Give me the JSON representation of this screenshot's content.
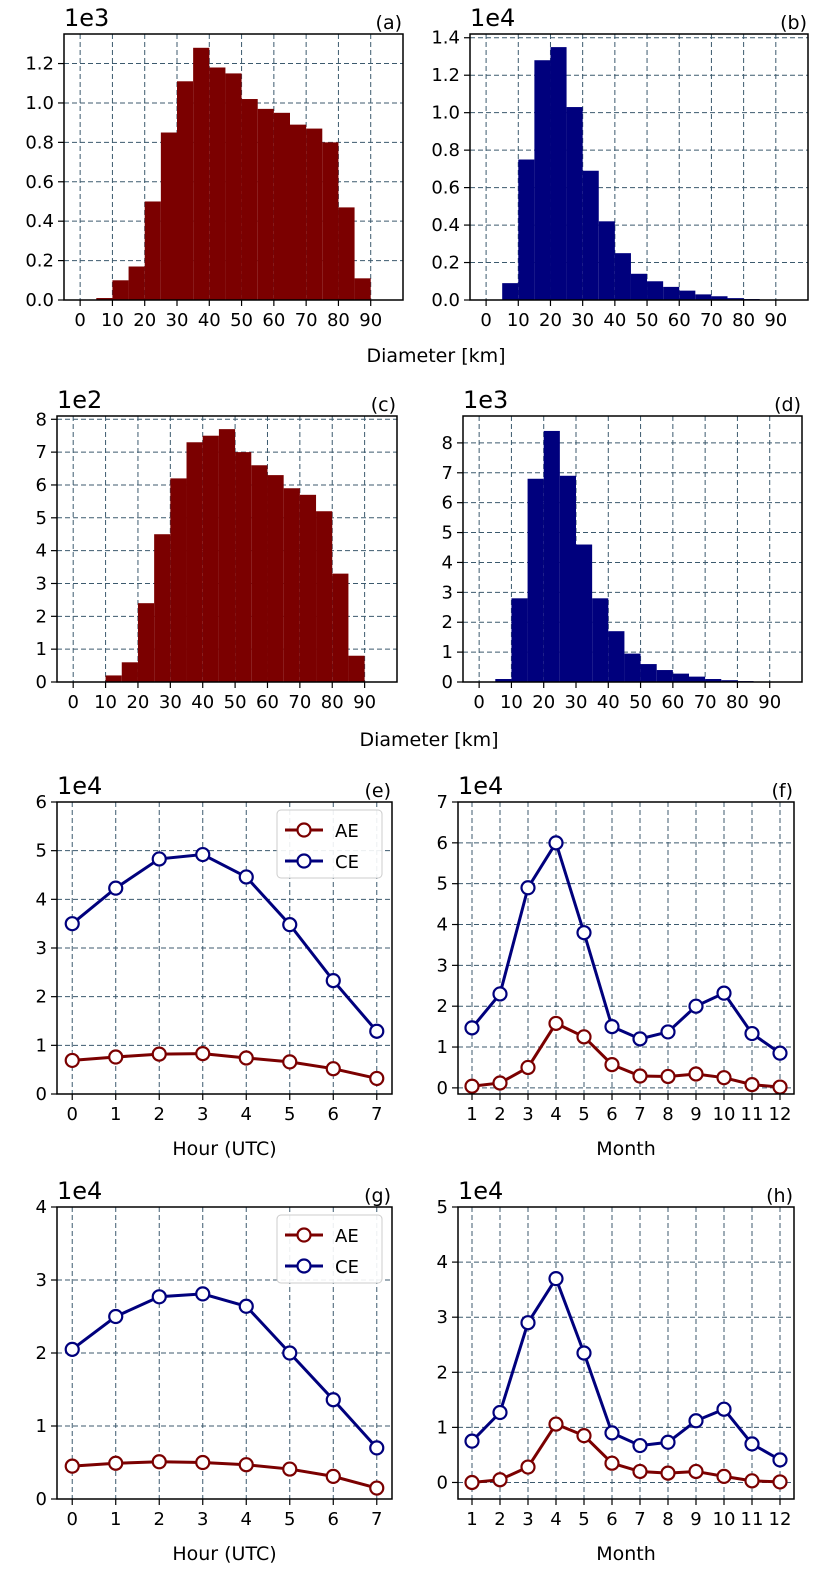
{
  "colors": {
    "ae": "#7b0000",
    "ce": "#00007d",
    "grid": "#3c5a6e"
  },
  "shared_labels": {
    "diameter": "Diameter [km]"
  },
  "chart_data": [
    {
      "panel": "(a)",
      "type": "bar",
      "scale_label": "1e3",
      "bin_width": 5,
      "bin_starts": [
        0,
        5,
        10,
        15,
        20,
        25,
        30,
        35,
        40,
        45,
        50,
        55,
        60,
        65,
        70,
        75,
        80,
        85,
        90,
        95
      ],
      "values": [
        0,
        0.01,
        0.1,
        0.17,
        0.5,
        0.85,
        1.11,
        1.28,
        1.18,
        1.15,
        1.02,
        0.97,
        0.95,
        0.89,
        0.87,
        0.8,
        0.47,
        0.11,
        0,
        0
      ],
      "xticks": [
        0,
        10,
        20,
        30,
        40,
        50,
        60,
        70,
        80,
        90
      ],
      "xlim": [
        -5,
        100
      ],
      "yticks": [
        "0.0",
        "0.2",
        "0.4",
        "0.6",
        "0.8",
        "1.0",
        "1.2"
      ],
      "ytick_values": [
        0,
        0.2,
        0.4,
        0.6,
        0.8,
        1.0,
        1.2
      ],
      "ylim": [
        0,
        1.35
      ],
      "color": "ae",
      "grid": true
    },
    {
      "panel": "(b)",
      "type": "bar",
      "scale_label": "1e4",
      "bin_width": 5,
      "bin_starts": [
        0,
        5,
        10,
        15,
        20,
        25,
        30,
        35,
        40,
        45,
        50,
        55,
        60,
        65,
        70,
        75,
        80,
        85,
        90,
        95
      ],
      "values": [
        0,
        0.09,
        0.75,
        1.28,
        1.35,
        1.03,
        0.69,
        0.42,
        0.25,
        0.14,
        0.1,
        0.07,
        0.05,
        0.03,
        0.02,
        0.01,
        0.005,
        0.002,
        0,
        0
      ],
      "xticks": [
        0,
        10,
        20,
        30,
        40,
        50,
        60,
        70,
        80,
        90
      ],
      "xlim": [
        -5,
        100
      ],
      "yticks": [
        "0.0",
        "0.2",
        "0.4",
        "0.6",
        "0.8",
        "1.0",
        "1.2",
        "1.4"
      ],
      "ytick_values": [
        0,
        0.2,
        0.4,
        0.6,
        0.8,
        1.0,
        1.2,
        1.4
      ],
      "ylim": [
        0,
        1.42
      ],
      "color": "ce",
      "grid": true
    },
    {
      "panel": "(c)",
      "type": "bar",
      "scale_label": "1e2",
      "bin_width": 5,
      "bin_starts": [
        0,
        5,
        10,
        15,
        20,
        25,
        30,
        35,
        40,
        45,
        50,
        55,
        60,
        65,
        70,
        75,
        80,
        85,
        90,
        95
      ],
      "values": [
        0,
        0,
        0.2,
        0.6,
        2.4,
        4.5,
        6.2,
        7.3,
        7.5,
        7.7,
        7.0,
        6.6,
        6.3,
        5.9,
        5.7,
        5.2,
        3.3,
        0.8,
        0,
        0
      ],
      "xticks": [
        0,
        10,
        20,
        30,
        40,
        50,
        60,
        70,
        80,
        90
      ],
      "xlim": [
        -5,
        100
      ],
      "yticks": [
        "0",
        "1",
        "2",
        "3",
        "4",
        "5",
        "6",
        "7",
        "8"
      ],
      "ytick_values": [
        0,
        1,
        2,
        3,
        4,
        5,
        6,
        7,
        8
      ],
      "ylim": [
        0,
        8.1
      ],
      "color": "ae",
      "grid": true
    },
    {
      "panel": "(d)",
      "type": "bar",
      "scale_label": "1e3",
      "bin_width": 5,
      "bin_starts": [
        0,
        5,
        10,
        15,
        20,
        25,
        30,
        35,
        40,
        45,
        50,
        55,
        60,
        65,
        70,
        75,
        80,
        85,
        90,
        95
      ],
      "values": [
        0,
        0.1,
        2.8,
        6.8,
        8.4,
        6.9,
        4.6,
        2.8,
        1.7,
        0.95,
        0.6,
        0.4,
        0.28,
        0.18,
        0.1,
        0.06,
        0.03,
        0.01,
        0,
        0
      ],
      "xticks": [
        0,
        10,
        20,
        30,
        40,
        50,
        60,
        70,
        80,
        90
      ],
      "xlim": [
        -5,
        100
      ],
      "yticks": [
        "0",
        "1",
        "2",
        "3",
        "4",
        "5",
        "6",
        "7",
        "8"
      ],
      "ytick_values": [
        0,
        1,
        2,
        3,
        4,
        5,
        6,
        7,
        8
      ],
      "ylim": [
        0,
        8.9
      ],
      "color": "ce",
      "grid": true
    },
    {
      "panel": "(e)",
      "type": "line",
      "scale_label": "1e4",
      "xlabel": "Hour (UTC)",
      "x": [
        0,
        1,
        2,
        3,
        4,
        5,
        6,
        7
      ],
      "xticks": [
        "0",
        "1",
        "2",
        "3",
        "4",
        "5",
        "6",
        "7"
      ],
      "xlim": [
        -0.35,
        7.35
      ],
      "yticks": [
        "0",
        "1",
        "2",
        "3",
        "4",
        "5",
        "6"
      ],
      "ytick_values": [
        0,
        1,
        2,
        3,
        4,
        5,
        6
      ],
      "ylim": [
        0,
        6
      ],
      "series": [
        {
          "name": "AE",
          "color": "ae",
          "values": [
            0.69,
            0.76,
            0.82,
            0.83,
            0.74,
            0.66,
            0.52,
            0.32
          ]
        },
        {
          "name": "CE",
          "color": "ce",
          "values": [
            3.5,
            4.23,
            4.83,
            4.92,
            4.46,
            3.48,
            2.33,
            1.29
          ]
        }
      ],
      "legend": "top-right",
      "grid": true
    },
    {
      "panel": "(f)",
      "type": "line",
      "scale_label": "1e4",
      "xlabel": "Month",
      "x": [
        1,
        2,
        3,
        4,
        5,
        6,
        7,
        8,
        9,
        10,
        11,
        12
      ],
      "xticks": [
        "1",
        "2",
        "3",
        "4",
        "5",
        "6",
        "7",
        "8",
        "9",
        "10",
        "11",
        "12"
      ],
      "xlim": [
        0.5,
        12.5
      ],
      "yticks": [
        "0",
        "1",
        "2",
        "3",
        "4",
        "5",
        "6",
        "7"
      ],
      "ytick_values": [
        0,
        1,
        2,
        3,
        4,
        5,
        6,
        7
      ],
      "ylim": [
        -0.15,
        7
      ],
      "series": [
        {
          "name": "AE",
          "color": "ae",
          "values": [
            0.04,
            0.12,
            0.5,
            1.58,
            1.25,
            0.57,
            0.29,
            0.28,
            0.34,
            0.25,
            0.08,
            0.02
          ]
        },
        {
          "name": "CE",
          "color": "ce",
          "values": [
            1.47,
            2.3,
            4.9,
            6.0,
            3.8,
            1.5,
            1.2,
            1.37,
            2.0,
            2.32,
            1.33,
            0.85
          ]
        }
      ],
      "legend": "none",
      "grid": true
    },
    {
      "panel": "(g)",
      "type": "line",
      "scale_label": "1e4",
      "xlabel": "Hour (UTC)",
      "x": [
        0,
        1,
        2,
        3,
        4,
        5,
        6,
        7
      ],
      "xticks": [
        "0",
        "1",
        "2",
        "3",
        "4",
        "5",
        "6",
        "7"
      ],
      "xlim": [
        -0.35,
        7.35
      ],
      "yticks": [
        "0",
        "1",
        "2",
        "3",
        "4"
      ],
      "ytick_values": [
        0,
        1,
        2,
        3,
        4
      ],
      "ylim": [
        0,
        4
      ],
      "series": [
        {
          "name": "AE",
          "color": "ae",
          "values": [
            0.45,
            0.49,
            0.51,
            0.5,
            0.47,
            0.41,
            0.31,
            0.15
          ]
        },
        {
          "name": "CE",
          "color": "ce",
          "values": [
            2.05,
            2.5,
            2.77,
            2.81,
            2.64,
            2.0,
            1.36,
            0.7
          ]
        }
      ],
      "legend": "top-right",
      "grid": true
    },
    {
      "panel": "(h)",
      "type": "line",
      "scale_label": "1e4",
      "xlabel": "Month",
      "x": [
        1,
        2,
        3,
        4,
        5,
        6,
        7,
        8,
        9,
        10,
        11,
        12
      ],
      "xticks": [
        "1",
        "2",
        "3",
        "4",
        "5",
        "6",
        "7",
        "8",
        "9",
        "10",
        "11",
        "12"
      ],
      "xlim": [
        0.5,
        12.5
      ],
      "yticks": [
        "0",
        "1",
        "2",
        "3",
        "4",
        "5"
      ],
      "ytick_values": [
        0,
        1,
        2,
        3,
        4,
        5
      ],
      "ylim": [
        -0.3,
        5
      ],
      "series": [
        {
          "name": "AE",
          "color": "ae",
          "values": [
            0.0,
            0.05,
            0.28,
            1.06,
            0.85,
            0.35,
            0.2,
            0.17,
            0.2,
            0.11,
            0.03,
            0.01
          ]
        },
        {
          "name": "CE",
          "color": "ce",
          "values": [
            0.75,
            1.27,
            2.9,
            3.7,
            2.35,
            0.9,
            0.67,
            0.73,
            1.12,
            1.33,
            0.7,
            0.41
          ]
        }
      ],
      "legend": "none",
      "grid": true
    }
  ]
}
